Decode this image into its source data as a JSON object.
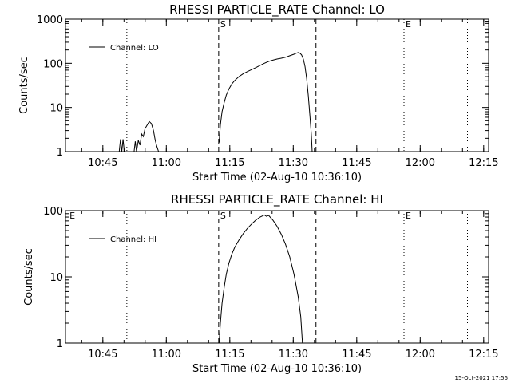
{
  "footer": {
    "timestamp": "15-Oct-2021 17:56"
  },
  "chart_data": [
    {
      "type": "line",
      "title": "RHESSI PARTICLE_RATE Channel: LO",
      "xlabel": "Start Time (02-Aug-10 10:36:10)",
      "ylabel": "Counts/sec",
      "x_unit": "minutes after 10:36:10 UT",
      "xlim": [
        0,
        100
      ],
      "ylim": [
        1,
        1000
      ],
      "yscale": "log",
      "x_ticks": [
        {
          "x": 8.83,
          "label": "10:45"
        },
        {
          "x": 23.83,
          "label": "11:00"
        },
        {
          "x": 38.83,
          "label": "11:15"
        },
        {
          "x": 53.83,
          "label": "11:30"
        },
        {
          "x": 68.83,
          "label": "11:45"
        },
        {
          "x": 83.83,
          "label": "12:00"
        },
        {
          "x": 98.83,
          "label": "12:15"
        }
      ],
      "y_ticks": [
        {
          "y": 1,
          "label": "1"
        },
        {
          "y": 10,
          "label": "10"
        },
        {
          "y": 100,
          "label": "100"
        },
        {
          "y": 1000,
          "label": "1000"
        }
      ],
      "legend": {
        "placement": "top-left",
        "entries": [
          "Channel: LO"
        ]
      },
      "markers": [
        {
          "x": 14.5,
          "style": "dotted",
          "label": ""
        },
        {
          "x": 36.2,
          "style": "dashed",
          "label": "S"
        },
        {
          "x": 59.2,
          "style": "dashed",
          "label": ""
        },
        {
          "x": 80.0,
          "style": "dotted",
          "label": "E"
        },
        {
          "x": 95.0,
          "style": "dotted",
          "label": ""
        }
      ],
      "series": [
        {
          "name": "Channel: LO",
          "segments": [
            [
              [
                12.7,
                1
              ],
              [
                13.0,
                1.9
              ],
              [
                13.3,
                1
              ],
              [
                13.6,
                1.9
              ],
              [
                13.9,
                1
              ]
            ],
            [
              [
                16.2,
                1
              ],
              [
                16.5,
                1.7
              ],
              [
                16.8,
                1
              ],
              [
                17.2,
                1.8
              ],
              [
                17.6,
                1.4
              ],
              [
                18.0,
                2.5
              ],
              [
                18.4,
                2.2
              ],
              [
                18.8,
                3.3
              ],
              [
                19.3,
                4.0
              ],
              [
                19.8,
                4.8
              ],
              [
                20.3,
                4.3
              ],
              [
                20.8,
                3.0
              ],
              [
                21.2,
                1.8
              ],
              [
                21.6,
                1.3
              ],
              [
                22.0,
                1
              ]
            ],
            [
              [
                36.3,
                1.6
              ],
              [
                36.6,
                4
              ],
              [
                37.0,
                8
              ],
              [
                37.5,
                13
              ],
              [
                38.0,
                19
              ],
              [
                38.6,
                26
              ],
              [
                39.3,
                34
              ],
              [
                40.0,
                41
              ],
              [
                41.0,
                50
              ],
              [
                42.0,
                58
              ],
              [
                43.0,
                65
              ],
              [
                44.0,
                72
              ],
              [
                45.0,
                80
              ],
              [
                46.0,
                90
              ],
              [
                47.0,
                100
              ],
              [
                48.0,
                110
              ],
              [
                49.0,
                118
              ],
              [
                50.0,
                125
              ],
              [
                51.0,
                130
              ],
              [
                52.0,
                137
              ],
              [
                53.0,
                148
              ],
              [
                54.0,
                160
              ],
              [
                54.6,
                170
              ],
              [
                55.0,
                175
              ],
              [
                55.4,
                170
              ],
              [
                55.8,
                155
              ],
              [
                56.2,
                125
              ],
              [
                56.6,
                85
              ],
              [
                57.0,
                45
              ],
              [
                57.4,
                18
              ],
              [
                57.8,
                6
              ],
              [
                58.1,
                2.5
              ],
              [
                58.3,
                1
              ]
            ]
          ]
        }
      ]
    },
    {
      "type": "line",
      "title": "RHESSI PARTICLE_RATE Channel: HI",
      "xlabel": "Start Time (02-Aug-10 10:36:10)",
      "ylabel": "Counts/sec",
      "x_unit": "minutes after 10:36:10 UT",
      "xlim": [
        0,
        100
      ],
      "ylim": [
        1,
        100
      ],
      "yscale": "log",
      "x_ticks": [
        {
          "x": 8.83,
          "label": "10:45"
        },
        {
          "x": 23.83,
          "label": "11:00"
        },
        {
          "x": 38.83,
          "label": "11:15"
        },
        {
          "x": 53.83,
          "label": "11:30"
        },
        {
          "x": 68.83,
          "label": "11:45"
        },
        {
          "x": 83.83,
          "label": "12:00"
        },
        {
          "x": 98.83,
          "label": "12:15"
        }
      ],
      "y_ticks": [
        {
          "y": 1,
          "label": "1"
        },
        {
          "y": 10,
          "label": "10"
        },
        {
          "y": 100,
          "label": "100"
        }
      ],
      "legend": {
        "placement": "top-left",
        "entries": [
          "Channel: HI"
        ]
      },
      "markers": [
        {
          "x": 0.6,
          "style": "none",
          "label": "E"
        },
        {
          "x": 14.5,
          "style": "dotted",
          "label": ""
        },
        {
          "x": 36.2,
          "style": "dashed",
          "label": "S"
        },
        {
          "x": 59.2,
          "style": "dashed",
          "label": ""
        },
        {
          "x": 80.0,
          "style": "dotted",
          "label": "E"
        },
        {
          "x": 95.0,
          "style": "dotted",
          "label": ""
        }
      ],
      "series": [
        {
          "name": "Channel: HI",
          "segments": [
            [
              [
                36.3,
                1
              ],
              [
                36.6,
                2
              ],
              [
                37.0,
                4
              ],
              [
                37.5,
                7
              ],
              [
                38.0,
                11
              ],
              [
                38.6,
                16
              ],
              [
                39.3,
                22
              ],
              [
                40.0,
                28
              ],
              [
                41.0,
                36
              ],
              [
                42.0,
                45
              ],
              [
                43.0,
                54
              ],
              [
                44.0,
                63
              ],
              [
                45.0,
                72
              ],
              [
                46.0,
                80
              ],
              [
                47.0,
                86
              ],
              [
                47.5,
                82
              ],
              [
                48.0,
                85
              ],
              [
                48.5,
                78
              ],
              [
                49.0,
                72
              ],
              [
                50.0,
                58
              ],
              [
                51.0,
                44
              ],
              [
                52.0,
                31
              ],
              [
                53.0,
                20
              ],
              [
                54.0,
                11
              ],
              [
                55.0,
                5
              ],
              [
                55.6,
                2.5
              ],
              [
                56.0,
                1
              ]
            ]
          ]
        }
      ]
    }
  ]
}
